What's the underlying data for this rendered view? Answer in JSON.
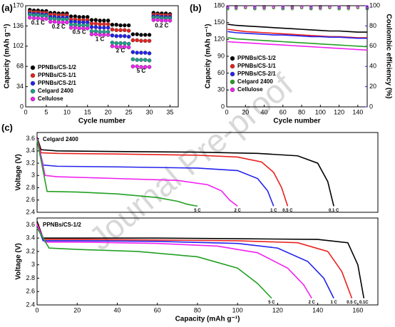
{
  "panel_labels": [
    "(a)",
    "(b)",
    "(c)"
  ],
  "watermark": "Journal Pre-proof",
  "chart_data": [
    {
      "type": "scatter",
      "xlabel": "Cycle number",
      "ylabel": "Capacity (mAh g⁻¹)",
      "xlim": [
        0,
        37
      ],
      "xticks": [
        0,
        5,
        10,
        15,
        20,
        25,
        30,
        35
      ],
      "ylim": [
        0,
        170
      ],
      "yticks": [
        0,
        34,
        68,
        102,
        136,
        170
      ],
      "legend": "lower left",
      "annotations": [
        "0.1 C",
        "0.2 C",
        "0.5 C",
        "1 C",
        "2 C",
        "5 C",
        "0.2 C"
      ],
      "x": [
        1,
        2,
        3,
        4,
        5,
        6,
        7,
        8,
        9,
        10,
        11,
        12,
        13,
        14,
        15,
        16,
        17,
        18,
        19,
        20,
        21,
        22,
        23,
        24,
        25,
        26,
        27,
        28,
        29,
        30,
        31,
        32,
        33,
        34,
        35
      ],
      "series": [
        {
          "name": "PPNBs/CS-1/2",
          "color": "#000000",
          "values": [
            163,
            162,
            162,
            161,
            161,
            158,
            158,
            157,
            157,
            157,
            152,
            152,
            151,
            151,
            151,
            146,
            146,
            145,
            145,
            145,
            138,
            138,
            137,
            137,
            137,
            122,
            122,
            121,
            121,
            121,
            158,
            157,
            157,
            157,
            156
          ]
        },
        {
          "name": "PPNBs/CS-1/1",
          "color": "#e8201c",
          "values": [
            160,
            159,
            159,
            158,
            158,
            155,
            155,
            154,
            154,
            154,
            147,
            147,
            146,
            146,
            146,
            140,
            140,
            139,
            139,
            139,
            130,
            129,
            129,
            129,
            128,
            112,
            112,
            111,
            111,
            111,
            155,
            155,
            154,
            154,
            154
          ]
        },
        {
          "name": "PPNBs/CS-2/1",
          "color": "#2222ee",
          "values": [
            157,
            156,
            156,
            155,
            155,
            151,
            151,
            150,
            150,
            150,
            143,
            143,
            142,
            142,
            142,
            134,
            134,
            133,
            133,
            133,
            120,
            119,
            119,
            119,
            118,
            92,
            91,
            91,
            91,
            90,
            152,
            152,
            151,
            151,
            151
          ]
        },
        {
          "name": "Celgard 2400",
          "color": "#1aa08c",
          "values": [
            155,
            154,
            154,
            153,
            153,
            148,
            148,
            147,
            147,
            147,
            138,
            138,
            137,
            137,
            137,
            127,
            127,
            126,
            126,
            126,
            108,
            107,
            107,
            107,
            106,
            80,
            79,
            79,
            79,
            78,
            150,
            150,
            149,
            149,
            149
          ]
        },
        {
          "name": "Cellulose",
          "color": "#f020f0",
          "values": [
            150,
            149,
            149,
            148,
            148,
            143,
            143,
            142,
            142,
            142,
            133,
            133,
            132,
            132,
            132,
            122,
            122,
            121,
            121,
            121,
            102,
            101,
            101,
            101,
            100,
            68,
            68,
            67,
            67,
            67,
            146,
            146,
            145,
            145,
            145
          ]
        }
      ]
    },
    {
      "type": "line",
      "xlabel": "Cycle number",
      "ylabel": "Capacity (mAh g⁻¹)",
      "y2label": "Coulombic efficiency (%)",
      "y2color": "#2222ee",
      "xlim": [
        0,
        150
      ],
      "xticks": [
        0,
        20,
        40,
        60,
        80,
        100,
        120,
        140
      ],
      "ylim": [
        0,
        180
      ],
      "yticks": [
        0,
        30,
        60,
        90,
        120,
        150,
        180
      ],
      "y2lim": [
        0,
        100
      ],
      "y2ticks": [
        0,
        20,
        40,
        60,
        80,
        100
      ],
      "legend": "lower left",
      "x": [
        1,
        10,
        20,
        30,
        40,
        50,
        60,
        70,
        80,
        90,
        100,
        110,
        120,
        130,
        140,
        150
      ],
      "series": [
        {
          "name": "PPNBs/CS-1/2",
          "color": "#000000",
          "values": [
            147,
            145,
            144,
            143,
            142,
            141,
            140,
            139,
            138,
            137,
            136,
            135,
            135,
            134,
            133,
            133
          ],
          "efficiency": [
            98,
            99,
            99,
            98,
            99,
            99,
            98,
            99,
            99,
            98,
            99,
            99,
            98,
            99,
            99,
            98
          ]
        },
        {
          "name": "PPNBs/CS-1/1",
          "color": "#e8201c",
          "values": [
            138,
            136,
            134,
            133,
            132,
            131,
            130,
            129,
            128,
            127,
            126,
            125,
            125,
            124,
            123,
            123
          ],
          "efficiency": [
            97,
            98,
            98,
            97,
            98,
            98,
            97,
            98,
            98,
            97,
            98,
            98,
            97,
            98,
            98,
            97
          ]
        },
        {
          "name": "PPNBs/CS-2/1",
          "color": "#2222ee",
          "values": [
            134,
            132,
            131,
            130,
            129,
            128,
            128,
            127,
            126,
            125,
            125,
            124,
            124,
            123,
            122,
            122
          ],
          "efficiency": [
            98,
            98,
            99,
            98,
            98,
            99,
            98,
            98,
            99,
            98,
            98,
            99,
            98,
            98,
            99,
            98
          ]
        },
        {
          "name": "Celgard 2400",
          "color": "#22a022",
          "values": [
            123,
            121,
            120,
            119,
            118,
            117,
            116,
            115,
            114,
            113,
            112,
            111,
            110,
            109,
            108,
            107
          ],
          "efficiency": [
            97,
            97,
            98,
            97,
            97,
            98,
            97,
            97,
            98,
            97,
            97,
            98,
            97,
            97,
            98,
            97
          ]
        },
        {
          "name": "Cellulose",
          "color": "#f020f0",
          "values": [
            116,
            115,
            114,
            113,
            112,
            111,
            110,
            109,
            108,
            107,
            106,
            105,
            104,
            103,
            102,
            101
          ],
          "efficiency": [
            99,
            98,
            99,
            99,
            98,
            99,
            99,
            98,
            99,
            99,
            98,
            99,
            99,
            98,
            99,
            99
          ]
        }
      ]
    },
    {
      "type": "line",
      "title": "Celgard 2400",
      "ylabel": "Voltage (V)",
      "end_labels": true,
      "xlim": [
        0,
        170
      ],
      "ylim": [
        2.4,
        3.7
      ],
      "yticks": [
        2.4,
        2.6,
        2.8,
        3.0,
        3.2,
        3.4,
        3.6
      ],
      "series": [
        {
          "name": "0.1 C",
          "color": "#000000",
          "x": [
            0,
            2,
            10,
            40,
            80,
            110,
            130,
            140,
            145,
            148
          ],
          "values": [
            3.62,
            3.42,
            3.4,
            3.39,
            3.38,
            3.36,
            3.32,
            3.2,
            2.9,
            2.5
          ]
        },
        {
          "name": "0.5 C",
          "color": "#e8201c",
          "x": [
            0,
            2,
            10,
            40,
            80,
            100,
            112,
            118,
            122,
            125
          ],
          "values": [
            3.6,
            3.37,
            3.36,
            3.35,
            3.33,
            3.3,
            3.22,
            3.05,
            2.8,
            2.5
          ]
        },
        {
          "name": "1 C",
          "color": "#2222ee",
          "x": [
            0,
            3,
            10,
            40,
            80,
            100,
            110,
            115,
            118
          ],
          "values": [
            3.6,
            3.17,
            3.15,
            3.14,
            3.12,
            3.08,
            2.95,
            2.75,
            2.5
          ]
        },
        {
          "name": "2 C",
          "color": "#f020f0",
          "x": [
            0,
            4,
            10,
            40,
            70,
            85,
            92,
            96,
            100
          ],
          "values": [
            3.6,
            3.0,
            2.98,
            2.95,
            2.92,
            2.85,
            2.75,
            2.6,
            2.5
          ]
        },
        {
          "name": "5 C",
          "color": "#22a022",
          "x": [
            0,
            5,
            20,
            40,
            60,
            70,
            75,
            80
          ],
          "values": [
            3.58,
            2.74,
            2.73,
            2.7,
            2.64,
            2.58,
            2.53,
            2.5
          ]
        }
      ]
    },
    {
      "type": "line",
      "title": "PPNBs/CS-1/2",
      "xlabel": "Capacity (mAh g⁻¹)",
      "ylabel": "Voltage (V)",
      "end_labels": true,
      "xlim": [
        0,
        170
      ],
      "xticks": [
        0,
        20,
        40,
        60,
        80,
        100,
        120,
        140,
        160
      ],
      "ylim": [
        2.4,
        3.7
      ],
      "yticks": [
        2.4,
        2.6,
        2.8,
        3.0,
        3.2,
        3.4,
        3.6
      ],
      "series": [
        {
          "name": "0.1C",
          "color": "#000000",
          "x": [
            0,
            3,
            20,
            60,
            100,
            140,
            155,
            160,
            163
          ],
          "values": [
            3.65,
            3.4,
            3.4,
            3.4,
            3.39,
            3.38,
            3.33,
            3.0,
            2.5
          ]
        },
        {
          "name": "0.5 C",
          "color": "#e8201c",
          "x": [
            0,
            3,
            20,
            60,
            100,
            130,
            145,
            152,
            157
          ],
          "values": [
            3.62,
            3.38,
            3.38,
            3.37,
            3.36,
            3.33,
            3.2,
            2.9,
            2.5
          ]
        },
        {
          "name": "1 C",
          "color": "#2222ee",
          "x": [
            0,
            3,
            20,
            60,
            100,
            120,
            135,
            143,
            148
          ],
          "values": [
            3.6,
            3.36,
            3.36,
            3.35,
            3.32,
            3.25,
            3.05,
            2.8,
            2.5
          ]
        },
        {
          "name": "2 C",
          "color": "#f020f0",
          "x": [
            0,
            4,
            20,
            60,
            90,
            110,
            125,
            133,
            137
          ],
          "values": [
            3.6,
            3.34,
            3.34,
            3.32,
            3.28,
            3.18,
            2.95,
            2.7,
            2.5
          ]
        },
        {
          "name": "5 C",
          "color": "#22a022",
          "x": [
            0,
            6,
            20,
            50,
            80,
            100,
            110,
            117
          ],
          "values": [
            3.55,
            3.25,
            3.23,
            3.2,
            3.12,
            2.95,
            2.72,
            2.5
          ]
        }
      ]
    }
  ]
}
